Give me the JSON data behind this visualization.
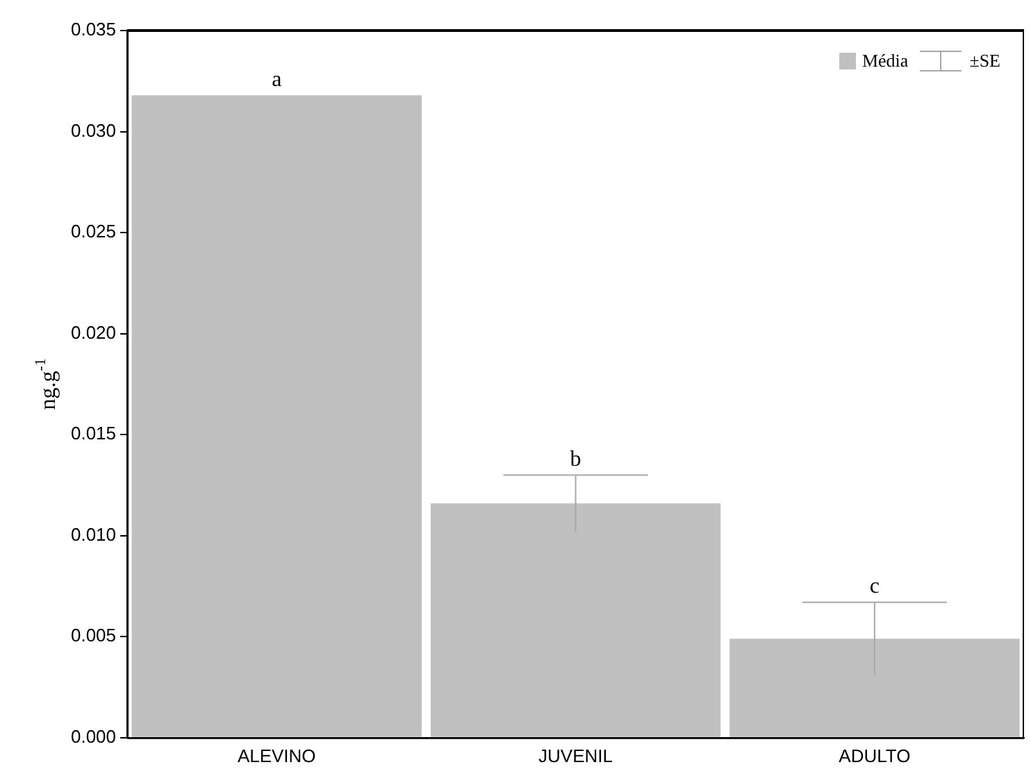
{
  "chart_data": {
    "type": "bar",
    "ylabel": "ng.g$^{-1}$",
    "categories": [
      "ALEVINO",
      "JUVENIL",
      "ADULTO"
    ],
    "series": [
      {
        "name": "Média",
        "color": "#c0c0c0",
        "values": [
          0.0318,
          0.0116,
          0.0049
        ],
        "errors": [
          null,
          0.0014,
          0.0018
        ]
      }
    ],
    "ylim": [
      0,
      0.035
    ],
    "yticks": [
      {
        "value": 0,
        "label": "0.000"
      },
      {
        "value": 0.005,
        "label": "0.005"
      },
      {
        "value": 0.01,
        "label": "0.010"
      },
      {
        "value": 0.015,
        "label": "0.015"
      },
      {
        "value": 0.02,
        "label": "0.020"
      },
      {
        "value": 0.025,
        "label": "0.025"
      },
      {
        "value": 0.03,
        "label": "0.030"
      },
      {
        "value": 0.035,
        "label": "0.035"
      }
    ],
    "legend": "top right",
    "grid": false,
    "annotations": [
      "a",
      "b",
      "c",
      "±SE"
    ]
  }
}
